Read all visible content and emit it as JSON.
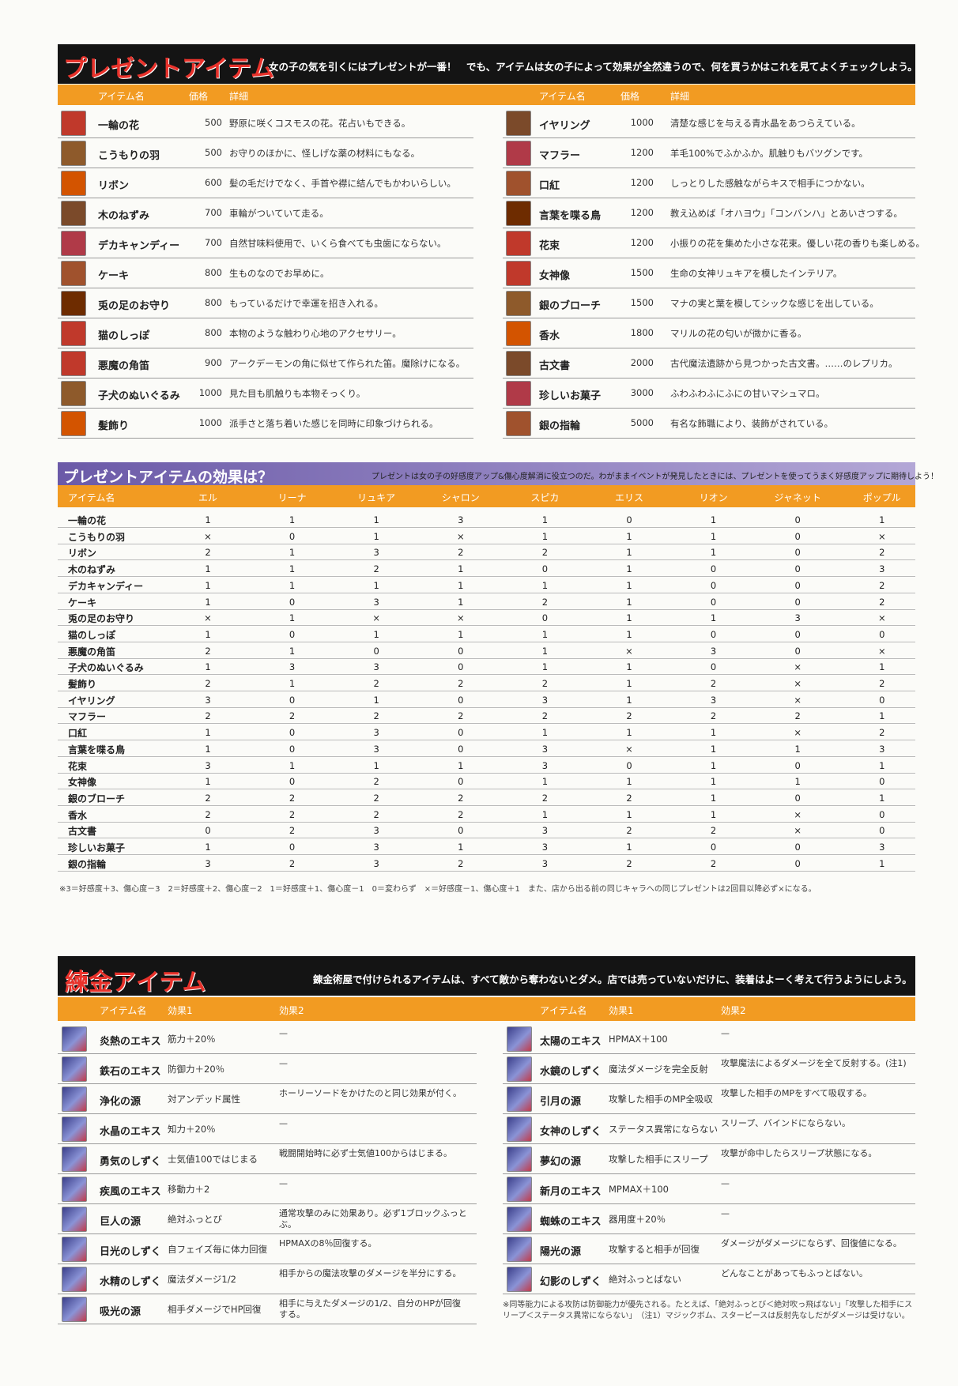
{
  "present_items": {
    "title": "プレゼントアイテム",
    "subtitle": "女の子の気を引くにはプレゼントが一番！　でも、アイテムは女の子によって効果が全然違うので、何を買うかはこれを見てよくチェックしよう。",
    "headers": [
      "アイテム名",
      "価格",
      "詳細"
    ],
    "left": [
      {
        "name": "一輪の花",
        "price": 500,
        "detail": "野原に咲くコスモスの花。花占いもできる。"
      },
      {
        "name": "こうもりの羽",
        "price": 500,
        "detail": "お守りのほかに、怪しげな薬の材料にもなる。"
      },
      {
        "name": "リボン",
        "price": 600,
        "detail": "髪の毛だけでなく、手首や襟に結んでもかわいらしい。"
      },
      {
        "name": "木のねずみ",
        "price": 700,
        "detail": "車輪がついていて走る。"
      },
      {
        "name": "デカキャンディー",
        "price": 700,
        "detail": "自然甘味料使用で、いくら食べても虫歯にならない。"
      },
      {
        "name": "ケーキ",
        "price": 800,
        "detail": "生ものなのでお早めに。"
      },
      {
        "name": "兎の足のお守り",
        "price": 800,
        "detail": "もっているだけで幸運を招き入れる。"
      },
      {
        "name": "猫のしっぽ",
        "price": 800,
        "detail": "本物のような触わり心地のアクセサリー。"
      },
      {
        "name": "悪魔の角笛",
        "price": 900,
        "detail": "アークデーモンの角に似せて作られた笛。魔除けになる。"
      },
      {
        "name": "子犬のぬいぐるみ",
        "price": 1000,
        "detail": "見た目も肌触りも本物そっくり。"
      },
      {
        "name": "髪飾り",
        "price": 1000,
        "detail": "派手さと落ち着いた感じを同時に印象づけられる。"
      }
    ],
    "right": [
      {
        "name": "イヤリング",
        "price": 1000,
        "detail": "清楚な感じを与える青水晶をあつらえている。"
      },
      {
        "name": "マフラー",
        "price": 1200,
        "detail": "羊毛100%でふかふか。肌触りもバツグンです。"
      },
      {
        "name": "口紅",
        "price": 1200,
        "detail": "しっとりした感触ながらキスで相手につかない。"
      },
      {
        "name": "言葉を喋る鳥",
        "price": 1200,
        "detail": "教え込めば「オハヨウ」「コンバンハ」とあいさつする。"
      },
      {
        "name": "花束",
        "price": 1200,
        "detail": "小振りの花を集めた小さな花束。優しい花の香りも楽しめる。"
      },
      {
        "name": "女神像",
        "price": 1500,
        "detail": "生命の女神リュキアを模したインテリア。"
      },
      {
        "name": "銀のブローチ",
        "price": 1500,
        "detail": "マナの実と葉を模してシックな感じを出している。"
      },
      {
        "name": "香水",
        "price": 1800,
        "detail": "マリルの花の匂いが微かに香る。"
      },
      {
        "name": "古文書",
        "price": 2000,
        "detail": "古代魔法遺跡から見つかった古文書。……のレプリカ。"
      },
      {
        "name": "珍しいお菓子",
        "price": 3000,
        "detail": "ふわふわふにふにの甘いマシュマロ。"
      },
      {
        "name": "銀の指輪",
        "price": 5000,
        "detail": "有名な飾職により、装飾がされている。"
      }
    ]
  },
  "effects": {
    "title": "プレゼントアイテムの効果は？",
    "subtitle": "プレゼントは女の子の好感度アップ&傷心度解消に役立つのだ。わがままイベントが発見したときには、プレゼントを使ってうまく好感度アップに期待しよう！",
    "headers": [
      "アイテム名",
      "エル",
      "リーナ",
      "リュキア",
      "シャロン",
      "スピカ",
      "エリス",
      "リオン",
      "ジャネット",
      "ポップル"
    ],
    "rows": [
      {
        "name": "一輪の花",
        "values": [
          "1",
          "1",
          "1",
          "3",
          "1",
          "0",
          "1",
          "0",
          "1"
        ]
      },
      {
        "name": "こうもりの羽",
        "values": [
          "×",
          "0",
          "1",
          "×",
          "1",
          "1",
          "1",
          "0",
          "×"
        ]
      },
      {
        "name": "リボン",
        "values": [
          "2",
          "1",
          "3",
          "2",
          "2",
          "1",
          "1",
          "0",
          "2"
        ]
      },
      {
        "name": "木のねずみ",
        "values": [
          "1",
          "1",
          "2",
          "1",
          "0",
          "1",
          "0",
          "0",
          "3"
        ]
      },
      {
        "name": "デカキャンディー",
        "values": [
          "1",
          "1",
          "1",
          "1",
          "1",
          "1",
          "0",
          "0",
          "2"
        ]
      },
      {
        "name": "ケーキ",
        "values": [
          "1",
          "0",
          "3",
          "1",
          "2",
          "1",
          "0",
          "0",
          "2"
        ]
      },
      {
        "name": "兎の足のお守り",
        "values": [
          "×",
          "1",
          "×",
          "×",
          "0",
          "1",
          "1",
          "3",
          "×"
        ]
      },
      {
        "name": "猫のしっぽ",
        "values": [
          "1",
          "0",
          "1",
          "1",
          "1",
          "1",
          "0",
          "0",
          "0"
        ]
      },
      {
        "name": "悪魔の角笛",
        "values": [
          "2",
          "1",
          "0",
          "0",
          "1",
          "×",
          "3",
          "0",
          "×"
        ]
      },
      {
        "name": "子犬のぬいぐるみ",
        "values": [
          "1",
          "3",
          "3",
          "0",
          "1",
          "1",
          "0",
          "×",
          "1"
        ]
      },
      {
        "name": "髪飾り",
        "values": [
          "2",
          "1",
          "2",
          "2",
          "2",
          "1",
          "2",
          "×",
          "2"
        ]
      },
      {
        "name": "イヤリング",
        "values": [
          "3",
          "0",
          "1",
          "0",
          "3",
          "1",
          "3",
          "×",
          "0"
        ]
      },
      {
        "name": "マフラー",
        "values": [
          "2",
          "2",
          "2",
          "2",
          "2",
          "2",
          "2",
          "2",
          "1"
        ]
      },
      {
        "name": "口紅",
        "values": [
          "1",
          "0",
          "3",
          "0",
          "1",
          "1",
          "1",
          "×",
          "2"
        ]
      },
      {
        "name": "言葉を喋る鳥",
        "values": [
          "1",
          "0",
          "3",
          "0",
          "3",
          "×",
          "1",
          "1",
          "3"
        ]
      },
      {
        "name": "花束",
        "values": [
          "3",
          "1",
          "1",
          "1",
          "3",
          "0",
          "1",
          "0",
          "1"
        ]
      },
      {
        "name": "女神像",
        "values": [
          "1",
          "0",
          "2",
          "0",
          "1",
          "1",
          "1",
          "1",
          "0"
        ]
      },
      {
        "name": "銀のブローチ",
        "values": [
          "2",
          "2",
          "2",
          "2",
          "2",
          "2",
          "1",
          "0",
          "1"
        ]
      },
      {
        "name": "香水",
        "values": [
          "2",
          "2",
          "2",
          "2",
          "1",
          "1",
          "1",
          "×",
          "0"
        ]
      },
      {
        "name": "古文書",
        "values": [
          "0",
          "2",
          "3",
          "0",
          "3",
          "2",
          "2",
          "×",
          "0"
        ]
      },
      {
        "name": "珍しいお菓子",
        "values": [
          "1",
          "0",
          "3",
          "1",
          "3",
          "1",
          "0",
          "0",
          "3"
        ]
      },
      {
        "name": "銀の指輪",
        "values": [
          "3",
          "2",
          "3",
          "2",
          "3",
          "2",
          "2",
          "0",
          "1"
        ]
      }
    ],
    "note": "※3＝好感度＋3、傷心度－3　2＝好感度＋2、傷心度－2　1＝好感度＋1、傷心度－1　0＝変わらず　×＝好感度－1、傷心度＋1　また、店から出る前の同じキャラへの同じプレゼントは2回目以降必ず×になる。"
  },
  "alchemy": {
    "title": "練金アイテム",
    "subtitle": "錬金術屋で付けられるアイテムは、すべて敵から奪わないとダメ。店では売っていないだけに、装着はよーく考えて行うようにしよう。",
    "headers": [
      "アイテム名",
      "効果1",
      "効果2"
    ],
    "left": [
      {
        "name": "炎熱のエキス",
        "effect1": "筋力＋20％",
        "effect2": "—"
      },
      {
        "name": "鉄石のエキス",
        "effect1": "防御力＋20％",
        "effect2": "—"
      },
      {
        "name": "浄化の源",
        "effect1": "対アンデッド属性",
        "effect2": "ホーリーソードをかけたのと同じ効果が付く。"
      },
      {
        "name": "水晶のエキス",
        "effect1": "知力＋20％",
        "effect2": "—"
      },
      {
        "name": "勇気のしずく",
        "effect1": "士気値100ではじまる",
        "effect2": "戦闘開始時に必ず士気値100からはじまる。"
      },
      {
        "name": "疾風のエキス",
        "effect1": "移動力＋2",
        "effect2": "—"
      },
      {
        "name": "巨人の源",
        "effect1": "絶対ふっとび",
        "effect2": "通常攻撃のみに効果あり。必ず1ブロックふっとぶ。"
      },
      {
        "name": "日光のしずく",
        "effect1": "自フェイズ毎に体力回復",
        "effect2": "HPMAXの8％回復する。"
      },
      {
        "name": "水精のしずく",
        "effect1": "魔法ダメージ1/2",
        "effect2": "相手からの魔法攻撃のダメージを半分にする。"
      },
      {
        "name": "吸光の源",
        "effect1": "相手ダメージでHP回復",
        "effect2": "相手に与えたダメージの1/2、自分のHPが回復する。"
      }
    ],
    "right": [
      {
        "name": "太陽のエキス",
        "effect1": "HPMAX＋100",
        "effect2": "—"
      },
      {
        "name": "水鏡のしずく",
        "effect1": "魔法ダメージを完全反射",
        "effect2": "攻撃魔法によるダメージを全て反射する。(注1)"
      },
      {
        "name": "引月の源",
        "effect1": "攻撃した相手のMP全吸収",
        "effect2": "攻撃した相手のMPをすべて吸収する。"
      },
      {
        "name": "女神のしずく",
        "effect1": "ステータス異常にならない",
        "effect2": "スリープ、バインドにならない。"
      },
      {
        "name": "夢幻の源",
        "effect1": "攻撃した相手にスリープ",
        "effect2": "攻撃が命中したらスリープ状態になる。"
      },
      {
        "name": "新月のエキス",
        "effect1": "MPMAX＋100",
        "effect2": "—"
      },
      {
        "name": "蜘蛛のエキス",
        "effect1": "器用度＋20％",
        "effect2": "—"
      },
      {
        "name": "陽光の源",
        "effect1": "攻撃すると相手が回復",
        "effect2": "ダメージがダメージにならず、回復値になる。"
      },
      {
        "name": "幻影のしずく",
        "effect1": "絶対ふっとばない",
        "effect2": "どんなことがあってもふっとばない。"
      }
    ],
    "note": "※同等能力による攻防は防御能力が優先される。たとえば、「絶対ふっとび＜絶対吹っ飛ばない」「攻撃した相手にスリープ＜ステータス異常にならない」　（注1）マジックボム、スターピースは反射先なしだがダメージは受けない。"
  }
}
